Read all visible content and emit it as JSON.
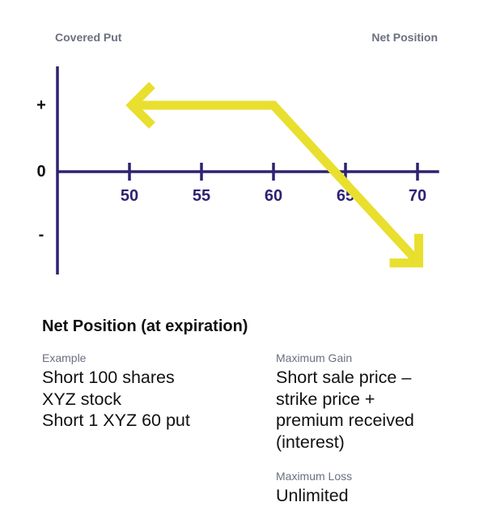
{
  "header": {
    "left_title": "Covered Put",
    "right_title": "Net Position"
  },
  "colors": {
    "axis": "#2e2370",
    "payoff_line": "#e9df2e",
    "label_gray": "#6b7080",
    "text": "#111111"
  },
  "chart_data": {
    "type": "line",
    "x_ticks": [
      50,
      55,
      60,
      65,
      70
    ],
    "y_labels": [
      "+",
      "0",
      "-"
    ],
    "xlim": [
      45,
      71.5
    ],
    "series": [
      {
        "points": [
          [
            50,
            1
          ],
          [
            60,
            1
          ],
          [
            70.2,
            -1.4
          ]
        ],
        "arrowheads": [
          "left",
          "down-right"
        ]
      }
    ]
  },
  "section_title": "Net Position (at expiration)",
  "example": {
    "label": "Example",
    "value": "Short 100 shares\nXYZ stock\nShort 1 XYZ 60 put"
  },
  "max_gain": {
    "label": "Maximum Gain",
    "value": "Short sale price –\nstrike price +\npremium received\n(interest)"
  },
  "max_loss": {
    "label": "Maximum Loss",
    "value": "Unlimited"
  }
}
